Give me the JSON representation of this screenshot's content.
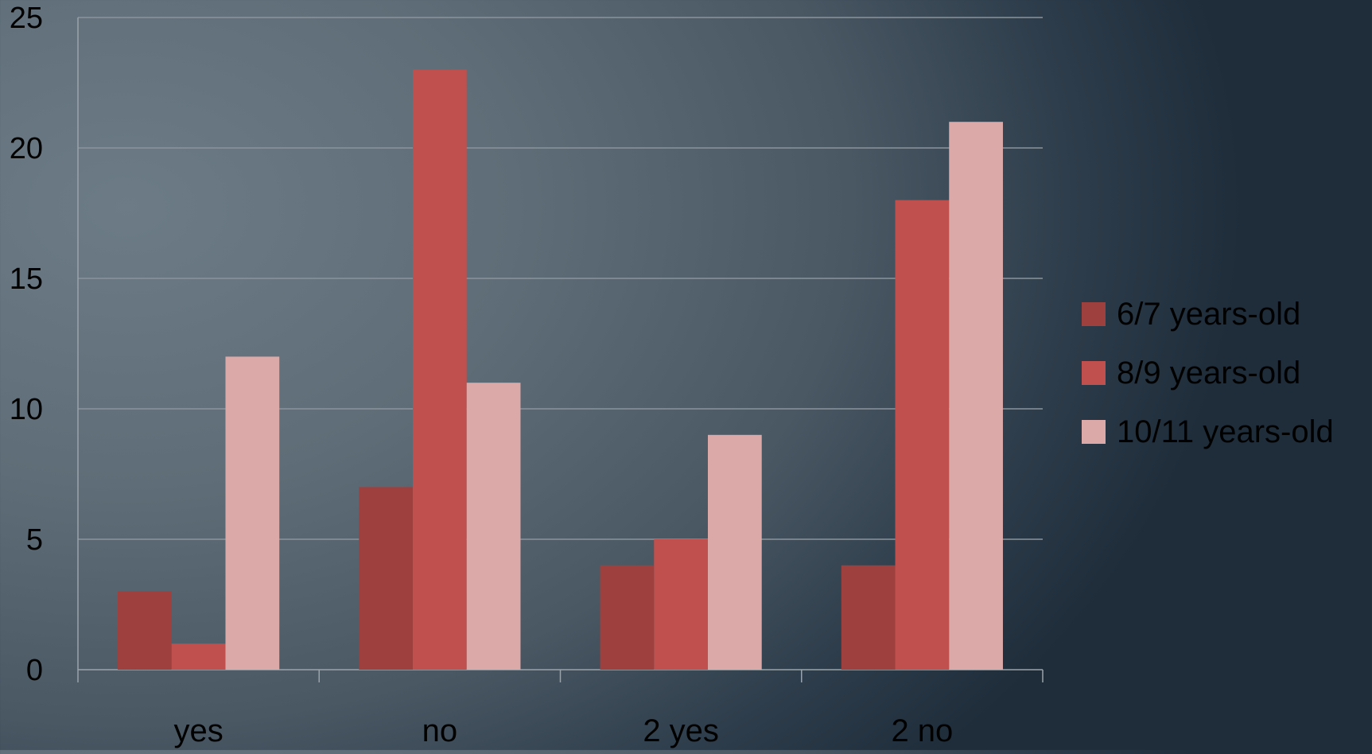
{
  "chart_data": {
    "type": "bar",
    "categories": [
      "yes",
      "no",
      "2 yes",
      "2 no"
    ],
    "series": [
      {
        "name": "6/7 years-old",
        "values": [
          3,
          7,
          4,
          4
        ],
        "color": "#9e413e"
      },
      {
        "name": "8/9 years-old",
        "values": [
          1,
          23,
          5,
          18
        ],
        "color": "#c0504d"
      },
      {
        "name": "10/11 years-old",
        "values": [
          12,
          11,
          9,
          21
        ],
        "color": "#dba9a8"
      }
    ],
    "y_ticks": [
      "0",
      "5",
      "10",
      "15",
      "20",
      "25"
    ],
    "ylim": [
      0,
      25
    ],
    "grid": true,
    "legend_position": "right",
    "title": "",
    "xlabel": "",
    "ylabel": ""
  }
}
